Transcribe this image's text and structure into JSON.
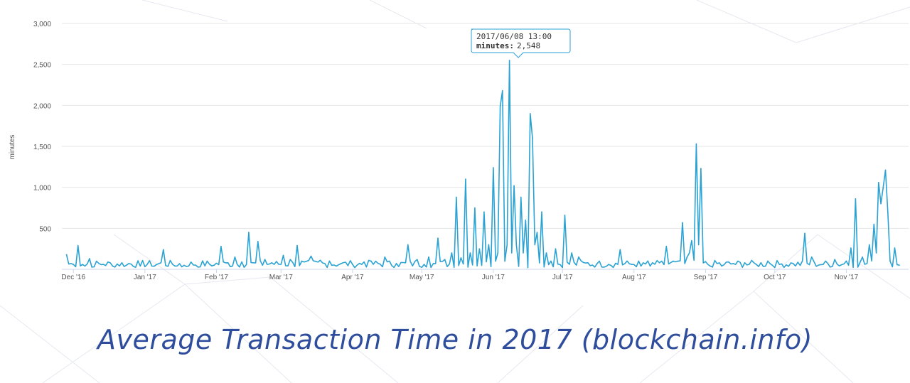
{
  "caption": "Average Transaction Time in 2017 (blockchain.info)",
  "colors": {
    "series": "#2aa2d3",
    "caption": "#2e4d9c",
    "grid": "#e6e6e6",
    "axis": "#ccd6eb"
  },
  "chart_data": {
    "type": "line",
    "title": "",
    "xlabel": "",
    "ylabel": "minutes",
    "ylim": [
      0,
      3000
    ],
    "y_ticks": [
      "500",
      "1,000",
      "1,500",
      "2,000",
      "2,500",
      "3,000"
    ],
    "x_ticks": [
      "Dec '16",
      "Jan '17",
      "Feb '17",
      "Mar '17",
      "Apr '17",
      "May '17",
      "Jun '17",
      "Jul '17",
      "Aug '17",
      "Sep '17",
      "Oct '17",
      "Nov '17"
    ],
    "grid": true,
    "legend": "none",
    "tooltip": {
      "date": "2017/06/08 13:00",
      "label": "minutes:",
      "value": "2,548"
    },
    "series": [
      {
        "x": [
          "2016-11-28",
          "2016-12-01",
          "2016-12-03",
          "2016-12-06",
          "2016-12-08",
          "2016-12-10",
          "2016-12-14",
          "2016-12-18",
          "2016-12-24",
          "2016-12-30",
          "2017-01-04",
          "2017-01-09",
          "2017-01-14",
          "2017-01-17",
          "2017-01-20",
          "2017-01-25",
          "2017-01-31",
          "2017-02-03",
          "2017-02-06",
          "2017-02-09",
          "2017-02-12",
          "2017-02-15",
          "2017-02-17",
          "2017-02-19",
          "2017-02-22",
          "2017-02-25",
          "2017-03-02",
          "2017-03-05",
          "2017-03-08",
          "2017-03-10",
          "2017-03-14",
          "2017-03-18",
          "2017-03-22",
          "2017-03-27",
          "2017-04-01",
          "2017-04-06",
          "2017-04-09",
          "2017-04-15",
          "2017-04-20",
          "2017-04-25",
          "2017-04-29",
          "2017-05-02",
          "2017-05-04",
          "2017-05-06",
          "2017-05-08",
          "2017-05-11",
          "2017-05-14",
          "2017-05-16",
          "2017-05-18",
          "2017-05-20",
          "2017-05-22",
          "2017-05-24",
          "2017-05-26",
          "2017-05-28",
          "2017-05-30",
          "2017-06-01",
          "2017-06-02",
          "2017-06-03",
          "2017-06-04",
          "2017-06-05",
          "2017-06-06",
          "2017-06-07",
          "2017-06-08",
          "2017-06-09",
          "2017-06-10",
          "2017-06-11",
          "2017-06-13",
          "2017-06-14",
          "2017-06-15",
          "2017-06-17",
          "2017-06-18",
          "2017-06-19",
          "2017-06-20",
          "2017-06-22",
          "2017-06-24",
          "2017-06-26",
          "2017-06-28",
          "2017-07-02",
          "2017-07-05",
          "2017-07-08",
          "2017-07-12",
          "2017-07-16",
          "2017-07-21",
          "2017-07-26",
          "2017-07-31",
          "2017-08-04",
          "2017-08-08",
          "2017-08-12",
          "2017-08-15",
          "2017-08-18",
          "2017-08-20",
          "2017-08-22",
          "2017-08-24",
          "2017-08-25",
          "2017-08-26",
          "2017-08-28",
          "2017-08-29",
          "2017-08-30",
          "2017-09-03",
          "2017-09-08",
          "2017-09-13",
          "2017-09-18",
          "2017-09-23",
          "2017-09-28",
          "2017-10-03",
          "2017-10-09",
          "2017-10-14",
          "2017-10-17",
          "2017-10-22",
          "2017-10-27",
          "2017-11-01",
          "2017-11-03",
          "2017-11-05",
          "2017-11-08",
          "2017-11-11",
          "2017-11-13",
          "2017-11-14",
          "2017-11-15",
          "2017-11-16",
          "2017-11-17",
          "2017-11-18",
          "2017-11-19",
          "2017-11-20",
          "2017-11-22",
          "2017-11-24"
        ],
        "y": [
          180,
          60,
          290,
          40,
          130,
          30,
          60,
          40,
          50,
          40,
          40,
          240,
          40,
          30,
          40,
          30,
          50,
          280,
          80,
          150,
          90,
          450,
          80,
          340,
          120,
          80,
          170,
          120,
          290,
          100,
          160,
          110,
          100,
          70,
          60,
          90,
          100,
          150,
          70,
          300,
          120,
          60,
          150,
          70,
          380,
          120,
          200,
          880,
          140,
          1100,
          200,
          750,
          250,
          700,
          300,
          1240,
          100,
          200,
          1990,
          2180,
          100,
          300,
          2548,
          200,
          1020,
          300,
          880,
          200,
          600,
          1900,
          1600,
          300,
          450,
          700,
          200,
          100,
          250,
          660,
          200,
          150,
          80,
          70,
          60,
          240,
          60,
          40,
          40,
          80,
          280,
          100,
          100,
          570,
          150,
          200,
          350,
          1530,
          300,
          1230,
          40,
          40,
          70,
          80,
          60,
          100,
          60,
          70,
          440,
          150,
          60,
          120,
          100,
          260,
          860,
          150,
          300,
          550,
          200,
          1060,
          800,
          1000,
          1210,
          700,
          100,
          260,
          50
        ]
      }
    ]
  }
}
